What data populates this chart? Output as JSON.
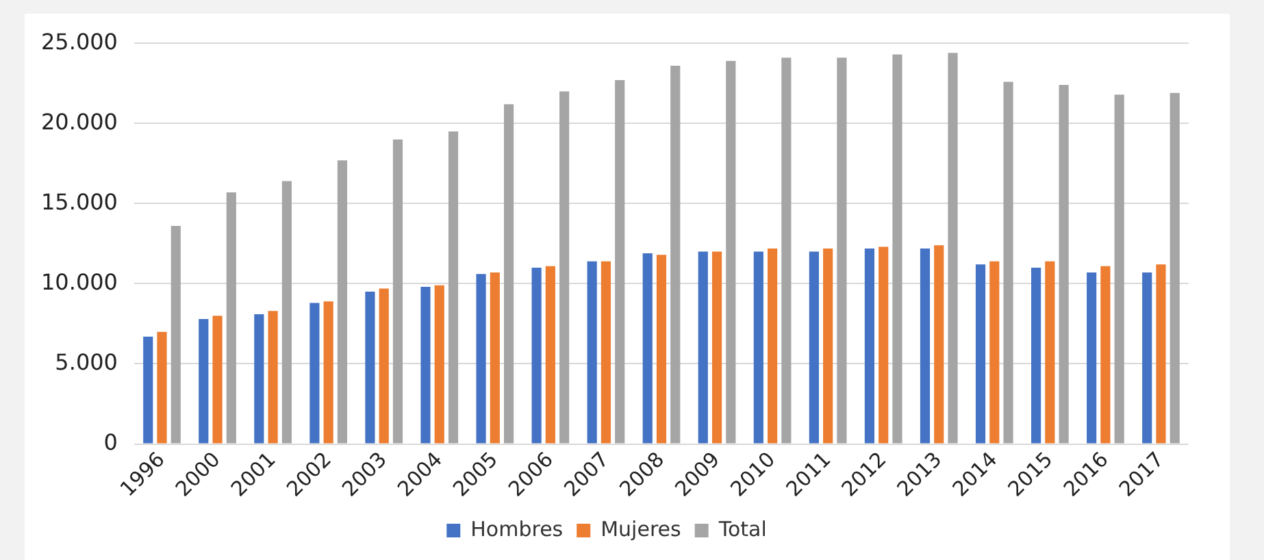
{
  "chart_data": {
    "type": "bar",
    "categories": [
      "1996",
      "2000",
      "2001",
      "2002",
      "2003",
      "2004",
      "2005",
      "2006",
      "2007",
      "2008",
      "2009",
      "2010",
      "2011",
      "2012",
      "2013",
      "2014",
      "2015",
      "2016",
      "2017"
    ],
    "series": [
      {
        "name": "Hombres",
        "color": "#4472c4",
        "values": [
          6700,
          7800,
          8100,
          8800,
          9500,
          9800,
          10600,
          11000,
          11400,
          11900,
          12000,
          12000,
          12000,
          12200,
          12200,
          11200,
          11000,
          10700,
          10700
        ]
      },
      {
        "name": "Mujeres",
        "color": "#ed7d31",
        "values": [
          7000,
          8000,
          8300,
          8900,
          9700,
          9900,
          10700,
          11100,
          11400,
          11800,
          12000,
          12200,
          12200,
          12300,
          12400,
          11400,
          11400,
          11100,
          11200
        ]
      },
      {
        "name": "Total",
        "color": "#a5a5a5",
        "values": [
          13600,
          15700,
          16400,
          17700,
          19000,
          19500,
          21200,
          22000,
          22700,
          23600,
          23900,
          24100,
          24100,
          24300,
          24400,
          22600,
          22400,
          21800,
          21900
        ]
      }
    ],
    "ylim": [
      0,
      25000
    ],
    "yticks": [
      0,
      {
        "value": 5000,
        "label": "5.000"
      },
      {
        "value": 10000,
        "label": "10.000"
      },
      {
        "value": 15000,
        "label": "15.000"
      },
      {
        "value": 20000,
        "label": "20.000"
      },
      {
        "value": 25000,
        "label": "25.000"
      }
    ],
    "grid": "y",
    "legend": "bottom"
  }
}
